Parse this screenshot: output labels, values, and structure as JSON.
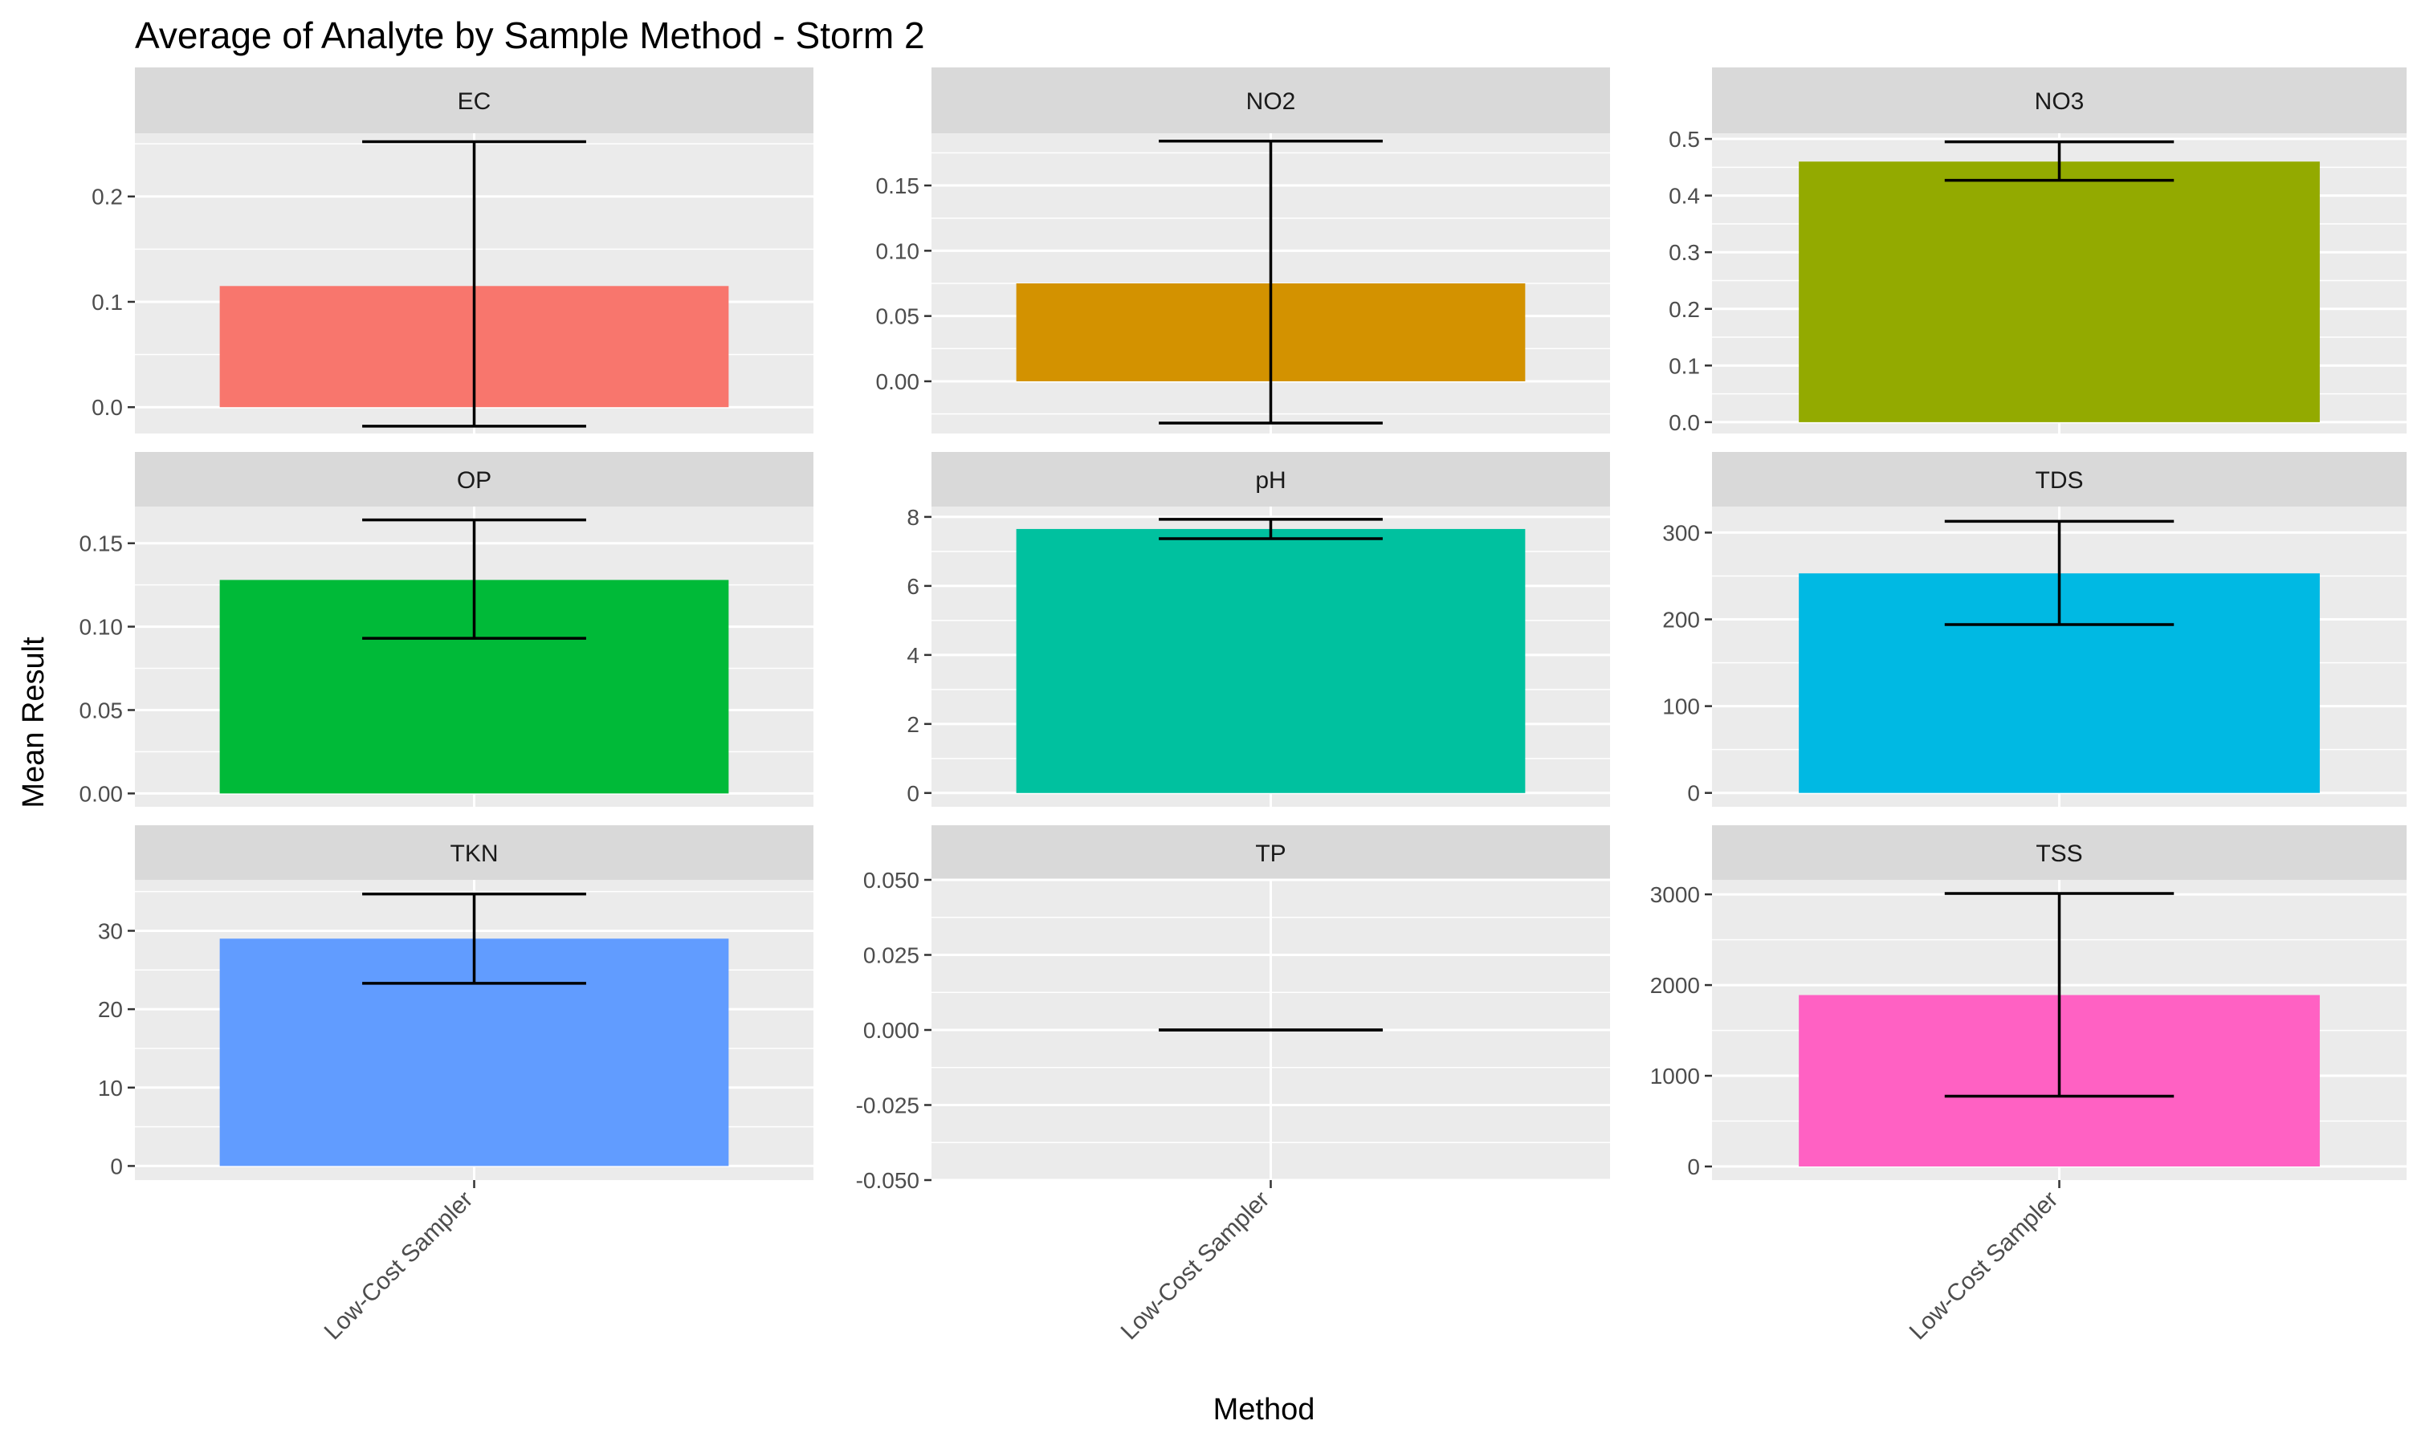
{
  "chart_data": {
    "type": "bar",
    "title": "Average of Analyte by Sample Method - Storm 2",
    "xlabel": "Method",
    "ylabel": "Mean Result",
    "categories": [
      "Low-Cost Sampler"
    ],
    "legend": "none",
    "grid": true,
    "facets": [
      {
        "label": "EC",
        "color": "#F8766D",
        "value": 0.115,
        "err_low": -0.018,
        "err_high": 0.252,
        "ylim": [
          -0.025,
          0.26
        ],
        "yticks": [
          0.0,
          0.1,
          0.2
        ],
        "tick_labels": [
          "0.0",
          "0.1",
          "0.2"
        ]
      },
      {
        "label": "NO2",
        "color": "#D39200",
        "value": 0.075,
        "err_low": -0.032,
        "err_high": 0.184,
        "ylim": [
          -0.04,
          0.19
        ],
        "yticks": [
          0.0,
          0.05,
          0.1,
          0.15
        ],
        "tick_labels": [
          "0.00",
          "0.05",
          "0.10",
          "0.15"
        ]
      },
      {
        "label": "NO3",
        "color": "#93AA00",
        "value": 0.46,
        "err_low": 0.427,
        "err_high": 0.495,
        "ylim": [
          -0.02,
          0.51
        ],
        "yticks": [
          0.0,
          0.1,
          0.2,
          0.3,
          0.4,
          0.5
        ],
        "tick_labels": [
          "0.0",
          "0.1",
          "0.2",
          "0.3",
          "0.4",
          "0.5"
        ]
      },
      {
        "label": "OP",
        "color": "#00BA38",
        "value": 0.128,
        "err_low": 0.093,
        "err_high": 0.164,
        "ylim": [
          -0.008,
          0.172
        ],
        "yticks": [
          0.0,
          0.05,
          0.1,
          0.15
        ],
        "tick_labels": [
          "0.00",
          "0.05",
          "0.10",
          "0.15"
        ]
      },
      {
        "label": "pH",
        "color": "#00C19F",
        "value": 7.65,
        "err_low": 7.37,
        "err_high": 7.93,
        "ylim": [
          -0.4,
          8.3
        ],
        "yticks": [
          0,
          2,
          4,
          6,
          8
        ],
        "tick_labels": [
          "0",
          "2",
          "4",
          "6",
          "8"
        ]
      },
      {
        "label": "TDS",
        "color": "#00B9E3",
        "value": 253,
        "err_low": 194,
        "err_high": 313,
        "ylim": [
          -16,
          330
        ],
        "yticks": [
          0,
          100,
          200,
          300
        ],
        "tick_labels": [
          "0",
          "100",
          "200",
          "300"
        ]
      },
      {
        "label": "TKN",
        "color": "#619CFF",
        "value": 29.0,
        "err_low": 23.3,
        "err_high": 34.7,
        "ylim": [
          -1.8,
          36.5
        ],
        "yticks": [
          0,
          10,
          20,
          30
        ],
        "tick_labels": [
          "0",
          "10",
          "20",
          "30"
        ]
      },
      {
        "label": "TP",
        "color": "#DB72FB",
        "value": 0.0,
        "err_low": 0.0,
        "err_high": 0.0,
        "ylim": [
          -0.05,
          0.05
        ],
        "yticks": [
          -0.05,
          -0.025,
          0.0,
          0.025,
          0.05
        ],
        "tick_labels": [
          "-0.050",
          "-0.025",
          "0.000",
          "0.025",
          "0.050"
        ]
      },
      {
        "label": "TSS",
        "color": "#FF61C3",
        "value": 1890,
        "err_low": 775,
        "err_high": 3010,
        "ylim": [
          -150,
          3160
        ],
        "yticks": [
          0,
          1000,
          2000,
          3000
        ],
        "tick_labels": [
          "0",
          "1000",
          "2000",
          "3000"
        ]
      }
    ]
  }
}
